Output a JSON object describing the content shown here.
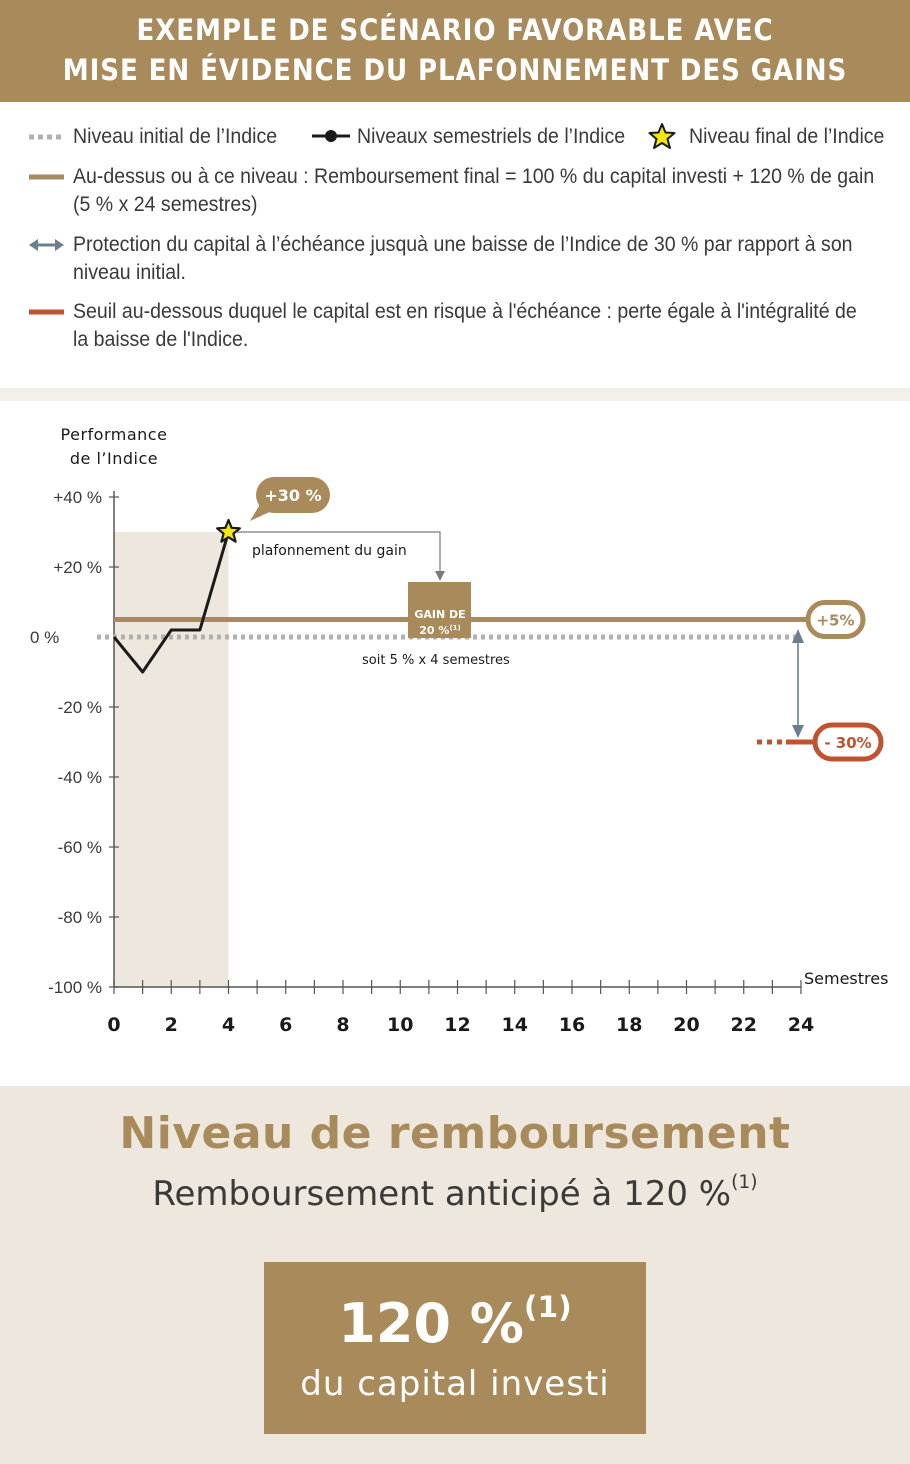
{
  "header": {
    "line1": "EXEMPLE DE SCÉNARIO FAVORABLE AVEC",
    "line2": "MISE EN ÉVIDENCE DU PLAFONNEMENT DES GAINS"
  },
  "legend": {
    "initial_level": "Niveau initial de l’Indice",
    "semestrial_levels": "Niveaux semestriels de l’Indice",
    "final_level": "Niveau final de l’Indice",
    "threshold_line1": "Au-dessus ou à ce niveau : Remboursement final = 100 %  du capital investi + 120 % de gain",
    "threshold_line2": "(5 % x 24 semestres)",
    "protection_line1": "Protection du capital à l’échéance jusquà une baisse de l’Indice de 30 % par rapport à son",
    "protection_line2": "niveau initial.",
    "risk_line1": "Seuil au-dessous duquel le capital est en risque à l'échéance : perte égale à l'intégralité de",
    "risk_line2": "la baisse de l'Indice.",
    "colors": {
      "initial": "#b1b1b1",
      "series": "#1a1a1a",
      "star": "#f2e60d",
      "threshold": "#a88a5b",
      "protection": "#6b7f8e",
      "risk": "#c0532f"
    }
  },
  "chart_data": {
    "type": "line",
    "ylabel_line1": "Performance",
    "ylabel_line2": "de l’Indice",
    "xlabel": "Semestres",
    "xlim": [
      0,
      24
    ],
    "ylim": [
      -100,
      40
    ],
    "y_ticks": [
      40,
      20,
      0,
      -20,
      -40,
      -60,
      -80,
      -100
    ],
    "y_tick_labels": [
      "+40 %",
      "+20 %",
      "0 %",
      "-20 %",
      "-40 %",
      "-60 %",
      "-80 %",
      "-100 %"
    ],
    "x_ticks": [
      0,
      2,
      4,
      6,
      8,
      10,
      12,
      14,
      16,
      18,
      20,
      22,
      24
    ],
    "x_tick_labels": [
      "0",
      "2",
      "4",
      "6",
      "8",
      "10",
      "12",
      "14",
      "16",
      "18",
      "20",
      "22",
      "24"
    ],
    "series": [
      {
        "x": [
          0,
          1,
          2,
          3,
          4
        ],
        "y": [
          0,
          -10,
          2,
          2,
          30
        ]
      }
    ],
    "final_point": {
      "x": 4,
      "y": 30,
      "label": "+30 %"
    },
    "initial_level": 0,
    "threshold_level": 5,
    "threshold_label": "+5%",
    "protection_level": -30,
    "protection_label": "- 30%",
    "cap_annotation": "plafonnement du gain",
    "gain_box_line1": "GAIN DE",
    "gain_box_line2": "20 %",
    "gain_box_sup": "(1)",
    "gain_value": 20,
    "gain_note": "soit 5 % x 4 semestres",
    "shaded_region": [
      0,
      4
    ]
  },
  "bottom": {
    "title": "Niveau de remboursement",
    "subtitle": "Remboursement anticipé à 120 %",
    "subtitle_sup": "(1)",
    "box_value": "120 %",
    "box_sup": "(1)",
    "box_text": "du capital investi"
  }
}
